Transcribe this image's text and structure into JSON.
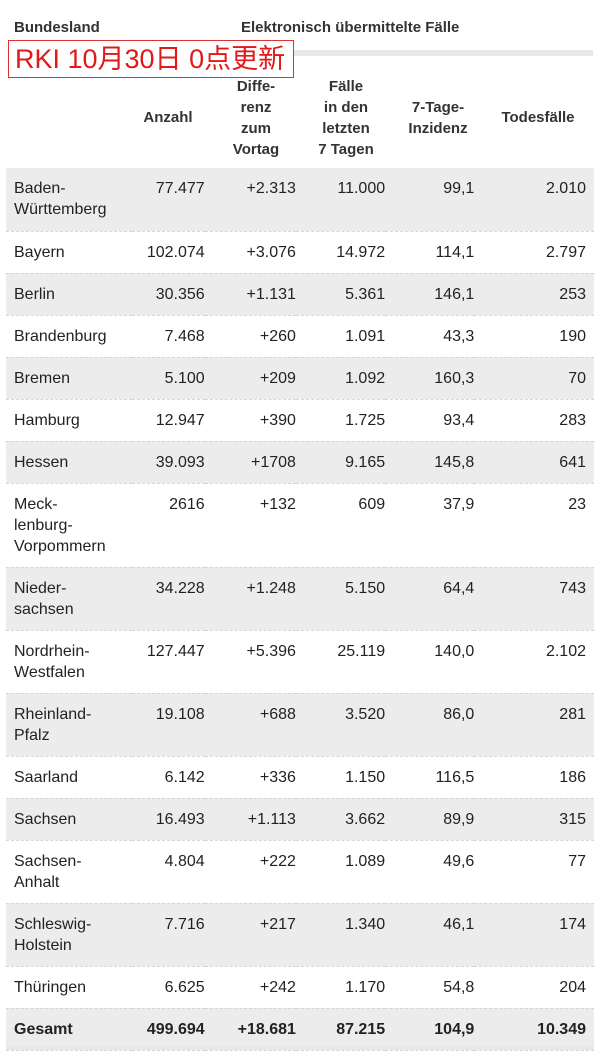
{
  "header": {
    "region_label": "Bundesland",
    "group_label": "Elektronisch übermittelte Fälle",
    "update_stamp": "RKI 10月30日 0点更新"
  },
  "columns": {
    "anzahl": "Anzahl",
    "differenz": [
      "Diffe-",
      "renz",
      "zum",
      "Vortag"
    ],
    "faelle7": [
      "Fälle",
      "in den",
      "letzten",
      "7 Tagen"
    ],
    "inzidenz": [
      "7-Tage-",
      "Inzidenz"
    ],
    "todesfaelle": "Todesfälle"
  },
  "rows": [
    {
      "name": [
        "Baden-",
        "Württemberg"
      ],
      "anzahl": "77.477",
      "diff": "+2.313",
      "f7": "11.000",
      "inz": "99,1",
      "tod": "2.010"
    },
    {
      "name": [
        "Bayern"
      ],
      "anzahl": "102.074",
      "diff": "+3.076",
      "f7": "14.972",
      "inz": "114,1",
      "tod": "2.797"
    },
    {
      "name": [
        "Berlin"
      ],
      "anzahl": "30.356",
      "diff": "+1.131",
      "f7": "5.361",
      "inz": "146,1",
      "tod": "253"
    },
    {
      "name": [
        "Brandenburg"
      ],
      "anzahl": "7.468",
      "diff": "+260",
      "f7": "1.091",
      "inz": "43,3",
      "tod": "190"
    },
    {
      "name": [
        "Bremen"
      ],
      "anzahl": "5.100",
      "diff": "+209",
      "f7": "1.092",
      "inz": "160,3",
      "tod": "70"
    },
    {
      "name": [
        "Hamburg"
      ],
      "anzahl": "12.947",
      "diff": "+390",
      "f7": "1.725",
      "inz": "93,4",
      "tod": "283"
    },
    {
      "name": [
        "Hessen"
      ],
      "anzahl": "39.093",
      "diff": "+1708",
      "f7": "9.165",
      "inz": "145,8",
      "tod": "641"
    },
    {
      "name": [
        "Meck-",
        "lenburg-",
        "Vorpommern"
      ],
      "anzahl": "2616",
      "diff": "+132",
      "f7": "609",
      "inz": "37,9",
      "tod": "23"
    },
    {
      "name": [
        "Nieder-",
        "sachsen"
      ],
      "anzahl": "34.228",
      "diff": "+1.248",
      "f7": "5.150",
      "inz": "64,4",
      "tod": "743"
    },
    {
      "name": [
        "Nordrhein-",
        "Westfalen"
      ],
      "anzahl": "127.447",
      "diff": "+5.396",
      "f7": "25.119",
      "inz": "140,0",
      "tod": "2.102"
    },
    {
      "name": [
        "Rheinland-",
        "Pfalz"
      ],
      "anzahl": "19.108",
      "diff": "+688",
      "f7": "3.520",
      "inz": "86,0",
      "tod": "281"
    },
    {
      "name": [
        "Saarland"
      ],
      "anzahl": "6.142",
      "diff": "+336",
      "f7": "1.150",
      "inz": "116,5",
      "tod": "186"
    },
    {
      "name": [
        "Sachsen"
      ],
      "anzahl": "16.493",
      "diff": "+1.113",
      "f7": "3.662",
      "inz": "89,9",
      "tod": "315"
    },
    {
      "name": [
        "Sachsen-",
        "Anhalt"
      ],
      "anzahl": "4.804",
      "diff": "+222",
      "f7": "1.089",
      "inz": "49,6",
      "tod": "77"
    },
    {
      "name": [
        "Schleswig-",
        "Holstein"
      ],
      "anzahl": "7.716",
      "diff": "+217",
      "f7": "1.340",
      "inz": "46,1",
      "tod": "174"
    },
    {
      "name": [
        "Thüringen"
      ],
      "anzahl": "6.625",
      "diff": "+242",
      "f7": "1.170",
      "inz": "54,8",
      "tod": "204"
    }
  ],
  "total": {
    "name": "Gesamt",
    "anzahl": "499.694",
    "diff": "+18.681",
    "f7": "87.215",
    "inz": "104,9",
    "tod": "10.349"
  },
  "colors": {
    "stamp_red": "#e31818",
    "stripe": "#ececec"
  }
}
